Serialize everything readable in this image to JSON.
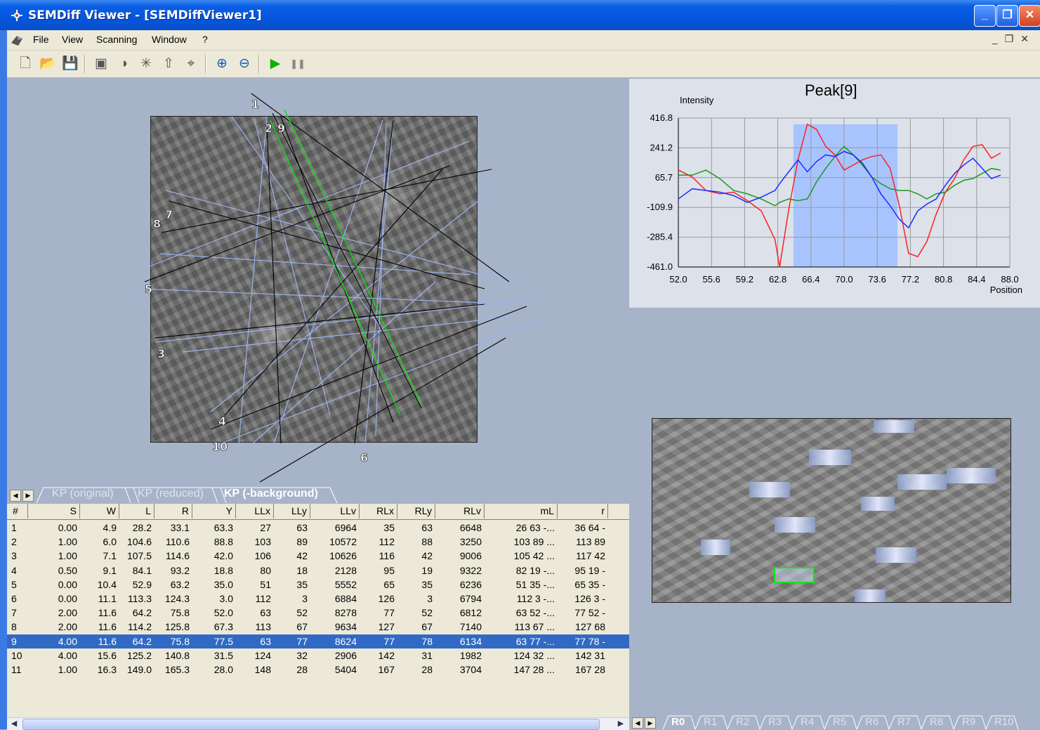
{
  "window": {
    "title": "SEMDiff Viewer - [SEMDiffViewer1]"
  },
  "menu": [
    "File",
    "View",
    "Scanning",
    "Window",
    "?"
  ],
  "toolbar": [
    {
      "name": "new-file-icon",
      "glyph": "🗋"
    },
    {
      "name": "open-folder-icon",
      "glyph": "📂"
    },
    {
      "name": "save-icon",
      "glyph": "💾"
    },
    {
      "name": "camera-icon",
      "glyph": "▣"
    },
    {
      "name": "contrast-icon",
      "glyph": "◑"
    },
    {
      "name": "star-burst-icon",
      "glyph": "✳"
    },
    {
      "name": "crosshair-up-icon",
      "glyph": "⇧"
    },
    {
      "name": "target-icon",
      "glyph": "⌖"
    },
    {
      "name": "zoom-in-icon",
      "glyph": "⊕"
    },
    {
      "name": "zoom-out-icon",
      "glyph": "⊖"
    },
    {
      "name": "play-icon",
      "glyph": "▶"
    },
    {
      "name": "pause-icon",
      "glyph": "❚❚"
    }
  ],
  "pattern": {
    "band_labels": [
      {
        "t": "1"
      },
      {
        "t": "2"
      },
      {
        "t": "9"
      },
      {
        "t": "7"
      },
      {
        "t": "8"
      },
      {
        "t": "5"
      },
      {
        "t": "3"
      },
      {
        "t": "4"
      },
      {
        "t": "10"
      },
      {
        "t": "6"
      }
    ]
  },
  "chart_data": {
    "type": "line",
    "title": "Peak[9]",
    "ylabel": "Intensity",
    "xlabel": "Position",
    "x_ticks": [
      "52.0",
      "55.6",
      "59.2",
      "62.8",
      "66.4",
      "70.0",
      "73.6",
      "77.2",
      "80.8",
      "84.4",
      "88.0"
    ],
    "y_ticks": [
      "416.8",
      "241.2",
      "65.7",
      "-109.9",
      "-285.4",
      "-461.0"
    ],
    "xlim": [
      52.0,
      88.0
    ],
    "ylim": [
      -461.0,
      416.8
    ],
    "highlight_range": [
      64.5,
      75.8
    ],
    "grid": true,
    "colors": {
      "red": "#ff2020",
      "green": "#1a9a1a",
      "blue": "#1a2cff",
      "highlight": "#a8c4ff"
    },
    "x": [
      52,
      53.5,
      55,
      56.5,
      58,
      59.5,
      61,
      62.5,
      63,
      64,
      65,
      66,
      67,
      68,
      69,
      70,
      71,
      72,
      73,
      74,
      75,
      76,
      77,
      78,
      79,
      80,
      81,
      82,
      83,
      84,
      85,
      86,
      87
    ],
    "series": [
      {
        "color": "red",
        "values": [
          110,
          70,
          -10,
          -30,
          -20,
          -70,
          -130,
          -300,
          -461,
          -120,
          170,
          380,
          350,
          250,
          200,
          110,
          140,
          170,
          190,
          200,
          120,
          -100,
          -380,
          -400,
          -310,
          -150,
          -20,
          60,
          170,
          250,
          260,
          180,
          210
        ]
      },
      {
        "color": "green",
        "values": [
          80,
          80,
          110,
          60,
          -10,
          -30,
          -60,
          -100,
          -80,
          -60,
          -70,
          -60,
          40,
          120,
          190,
          250,
          200,
          140,
          70,
          30,
          0,
          -10,
          -10,
          -30,
          -60,
          -30,
          -20,
          20,
          50,
          60,
          90,
          120,
          110
        ]
      },
      {
        "color": "blue",
        "values": [
          -60,
          0,
          -10,
          -20,
          -40,
          -80,
          -50,
          -10,
          30,
          100,
          170,
          100,
          160,
          200,
          190,
          220,
          200,
          150,
          70,
          -30,
          -100,
          -180,
          -230,
          -130,
          -90,
          -60,
          20,
          90,
          140,
          180,
          120,
          60,
          80
        ]
      }
    ]
  },
  "tabs_left": {
    "items": [
      "KP (original)",
      "KP (reduced)",
      "KP (-background)"
    ],
    "active": 2
  },
  "table": {
    "columns": [
      "#",
      "S",
      "W",
      "L",
      "R",
      "Y",
      "LLx",
      "LLy",
      "LLv",
      "RLx",
      "RLy",
      "RLv",
      "mL",
      "r"
    ],
    "rows": [
      [
        "1",
        "0.00",
        "4.9",
        "28.2",
        "33.1",
        "63.3",
        "27",
        "63",
        "6964",
        "35",
        "63",
        "6648",
        "26  63 -...",
        "36  64 -"
      ],
      [
        "2",
        "1.00",
        "6.0",
        "104.6",
        "110.6",
        "88.8",
        "103",
        "89",
        "10572",
        "112",
        "88",
        "3250",
        "103  89 ...",
        "113  89"
      ],
      [
        "3",
        "1.00",
        "7.1",
        "107.5",
        "114.6",
        "42.0",
        "106",
        "42",
        "10626",
        "116",
        "42",
        "9006",
        "105  42 ...",
        "117  42"
      ],
      [
        "4",
        "0.50",
        "9.1",
        "84.1",
        "93.2",
        "18.8",
        "80",
        "18",
        "2128",
        "95",
        "19",
        "9322",
        "82  19 -...",
        "95  19 -"
      ],
      [
        "5",
        "0.00",
        "10.4",
        "52.9",
        "63.2",
        "35.0",
        "51",
        "35",
        "5552",
        "65",
        "35",
        "6236",
        "51  35 -...",
        "65  35 -"
      ],
      [
        "6",
        "0.00",
        "11.1",
        "113.3",
        "124.3",
        "3.0",
        "112",
        "3",
        "6884",
        "126",
        "3",
        "6794",
        "112  3 -...",
        "126  3 -"
      ],
      [
        "7",
        "2.00",
        "11.6",
        "64.2",
        "75.8",
        "52.0",
        "63",
        "52",
        "8278",
        "77",
        "52",
        "6812",
        "63  52 -...",
        "77  52 -"
      ],
      [
        "8",
        "2.00",
        "11.6",
        "114.2",
        "125.8",
        "67.3",
        "113",
        "67",
        "9634",
        "127",
        "67",
        "7140",
        "113  67 ...",
        "127  68"
      ],
      [
        "9",
        "4.00",
        "11.6",
        "64.2",
        "75.8",
        "77.5",
        "63",
        "77",
        "8624",
        "77",
        "78",
        "6134",
        "63  77 -...",
        "77  78 -"
      ],
      [
        "10",
        "4.00",
        "15.6",
        "125.2",
        "140.8",
        "31.5",
        "124",
        "32",
        "2906",
        "142",
        "31",
        "1982",
        "124  32 ...",
        "142  31"
      ],
      [
        "11",
        "1.00",
        "16.3",
        "149.0",
        "165.3",
        "28.0",
        "148",
        "28",
        "5404",
        "167",
        "28",
        "3704",
        "147  28 ...",
        "167  28"
      ]
    ],
    "selected_row": 8
  },
  "tabs_right": {
    "items": [
      "R0",
      "R1",
      "R2",
      "R3",
      "R4",
      "R5",
      "R6",
      "R7",
      "R8",
      "R9",
      "R10"
    ],
    "active": 0
  }
}
